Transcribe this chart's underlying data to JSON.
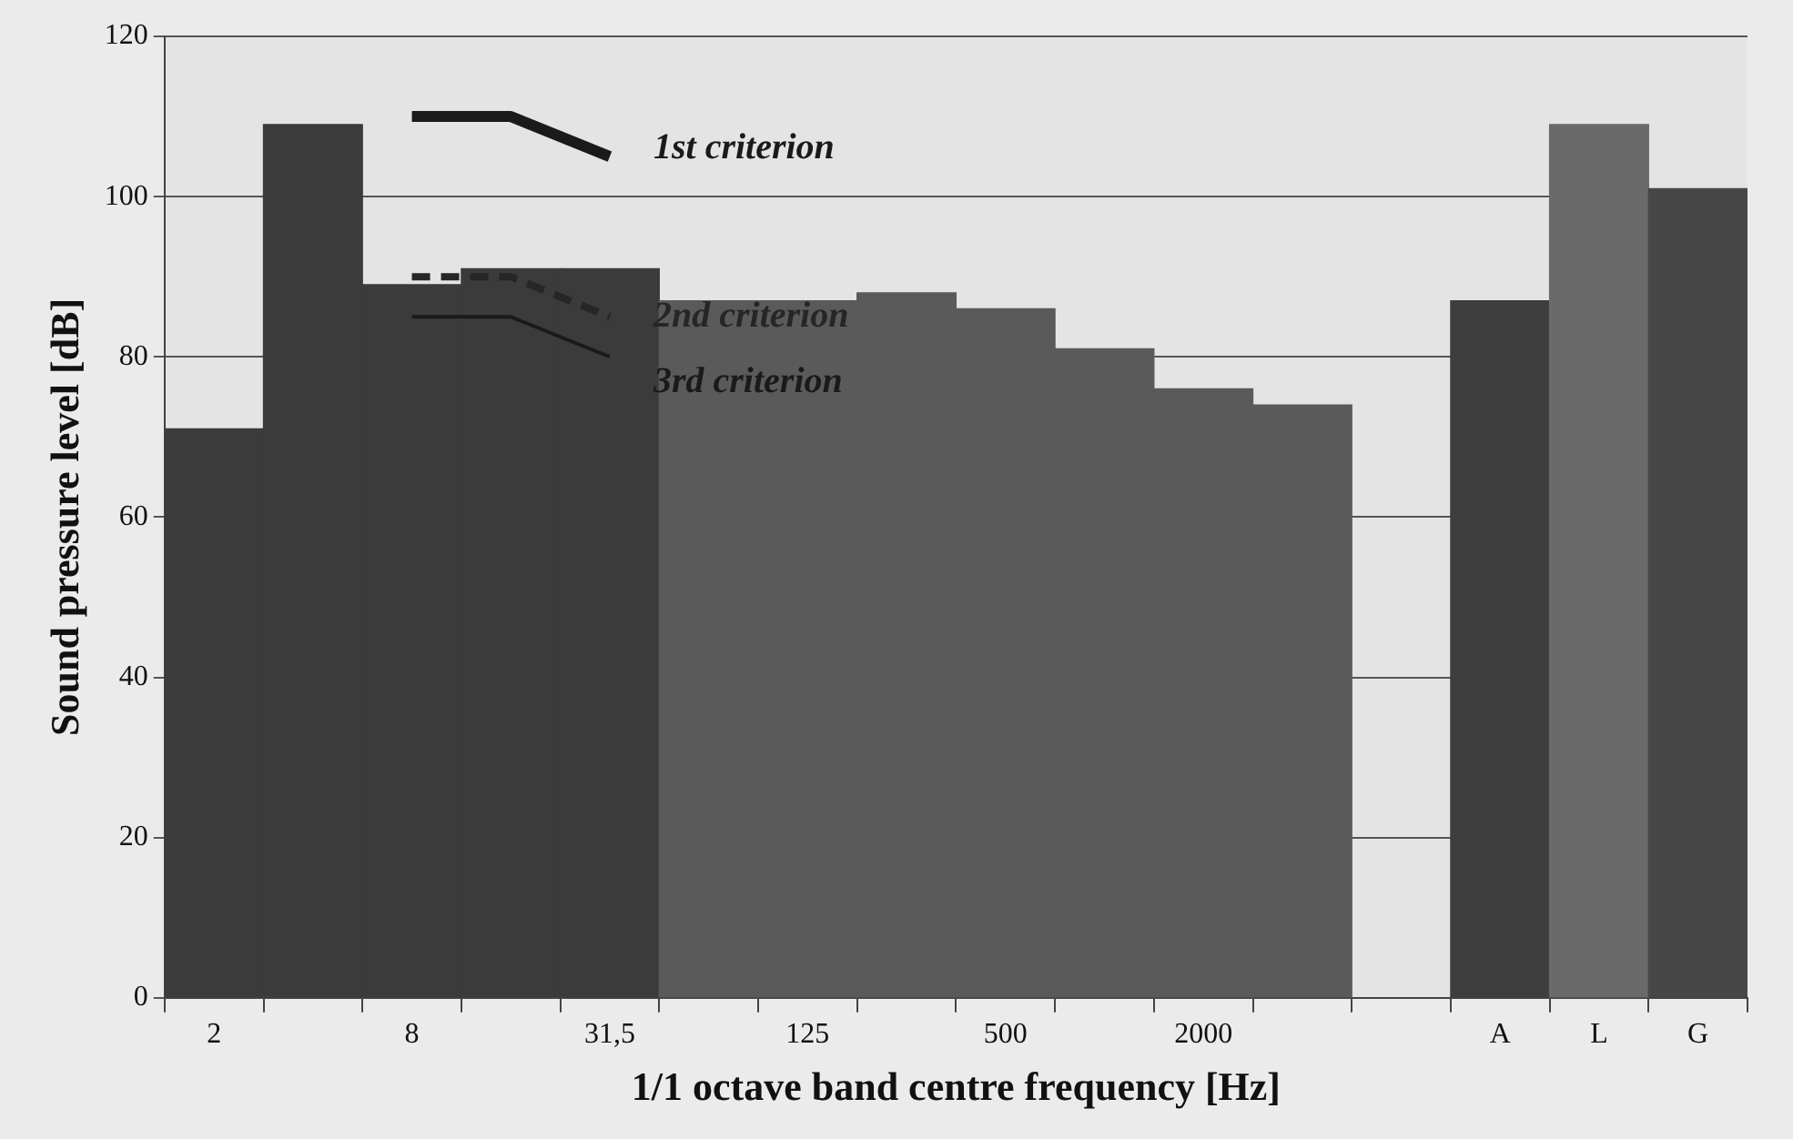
{
  "chart_data": {
    "type": "bar",
    "xlabel": "1/1 octave band centre frequency [Hz]",
    "ylabel": "Sound pressure level [dB]",
    "categories": [
      "2",
      null,
      "8",
      null,
      "31,5",
      null,
      "125",
      null,
      "500",
      null,
      "2000",
      null,
      null,
      "A",
      "L",
      "G"
    ],
    "series": [
      {
        "type": "bar",
        "colors": [
          "#3b3b3b",
          "#3b3b3b",
          "#3b3b3b",
          "#3b3b3b",
          "#3b3b3b",
          "#5a5a5a",
          "#5a5a5a",
          "#5a5a5a",
          "#5a5a5a",
          "#5a5a5a",
          "#5a5a5a",
          "#5a5a5a",
          "#5a5a5a",
          "#3e3e3e",
          "#6a6a6a",
          "#474747"
        ],
        "values": [
          71,
          109,
          89,
          91,
          91,
          87,
          87,
          88,
          86,
          81,
          76,
          74,
          null,
          87,
          109,
          101
        ]
      },
      {
        "type": "line",
        "name": "1st criterion",
        "color": "#1a1a1a",
        "line_style": "solid",
        "values": [
          null,
          null,
          110,
          110,
          105,
          null,
          null,
          null,
          null,
          null,
          null,
          null,
          null,
          null,
          null,
          null
        ]
      },
      {
        "type": "line",
        "name": "2nd criterion",
        "color": "#262626",
        "line_style": "dashed",
        "values": [
          null,
          null,
          90,
          90,
          85,
          null,
          null,
          null,
          null,
          null,
          null,
          null,
          null,
          null,
          null,
          null
        ]
      },
      {
        "type": "line",
        "name": "3rd criterion",
        "color": "#1a1a1a",
        "line_style": "solid",
        "values": [
          null,
          null,
          85,
          85,
          80,
          null,
          null,
          null,
          null,
          null,
          null,
          null,
          null,
          null,
          null,
          null
        ]
      }
    ],
    "ylim": [
      0,
      120
    ],
    "yticks": [
      0,
      20,
      40,
      60,
      80,
      100,
      120
    ],
    "grid": "y",
    "legend": false,
    "marker": "none"
  }
}
